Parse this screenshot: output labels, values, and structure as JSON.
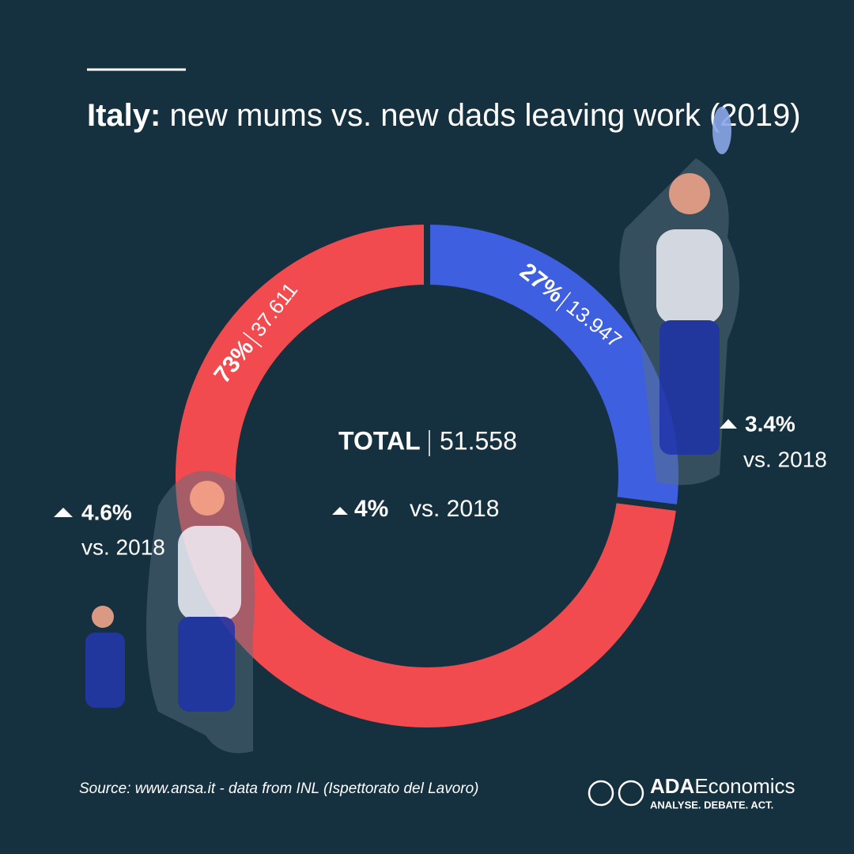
{
  "chart_data": {
    "type": "donut",
    "title": [
      "Italy:",
      "new mums vs. new dads leaving work (2019)"
    ],
    "values": [
      73,
      27
    ],
    "value_labels": [
      "73%",
      "27%"
    ],
    "counts": [
      37611,
      13947
    ],
    "count_labels": [
      "37.611",
      "13.947"
    ],
    "colors": [
      "#f24b4f",
      "#3d5fe0"
    ],
    "changes": [
      {
        "value": 4.6,
        "label": "4.6%"
      },
      {
        "value": 3.4,
        "label": "3.4%"
      }
    ],
    "comparison": "vs. 2018",
    "total": {
      "label": "TOTAL",
      "value": 51558,
      "value_label": "51.558",
      "change": {
        "value": 4,
        "label": "4%"
      }
    },
    "source": "Source: www.ansa.it - data from INL (Ispettorato del Lavoro)",
    "logo": {
      "name": [
        "ADA",
        "Economics"
      ],
      "tagline": "ANALYSE. DEBATE. ACT."
    }
  }
}
